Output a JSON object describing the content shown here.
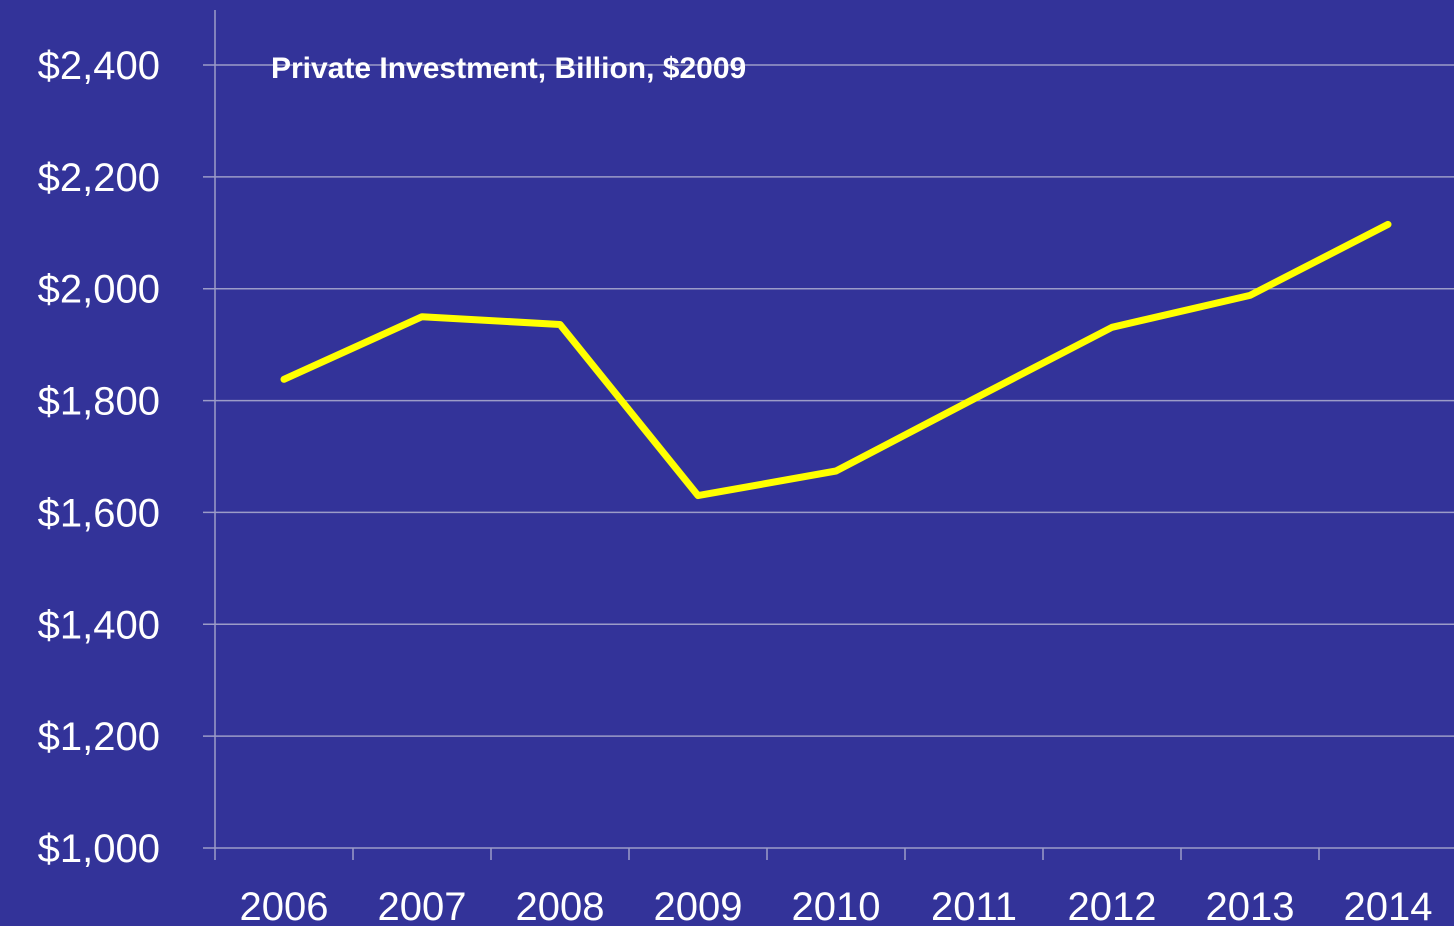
{
  "chart_data": {
    "type": "line",
    "title": "Private Investment, Billion, $2009",
    "xlabel": "",
    "ylabel": "",
    "categories": [
      "2006",
      "2007",
      "2008",
      "2009",
      "2010",
      "2011",
      "2012",
      "2013",
      "2014"
    ],
    "y_tick_labels": [
      "$1,000",
      "$1,200",
      "$1,400",
      "$1,600",
      "$1,800",
      "$2,000",
      "$2,200",
      "$2,400"
    ],
    "y_ticks": [
      1000,
      1200,
      1400,
      1600,
      1800,
      2000,
      2200,
      2400
    ],
    "ylim": [
      1000,
      2400
    ],
    "grid": true,
    "legend": "none",
    "series": [
      {
        "values": [
          1838,
          1950,
          1936,
          1630,
          1674,
          1803,
          1931,
          1988,
          2115
        ]
      }
    ],
    "colors": {
      "background": "#333399",
      "line": "#FFFF00",
      "grid": "#9C9CC8",
      "axis": "#9C9CC8",
      "text": "#FFFFFF"
    }
  }
}
